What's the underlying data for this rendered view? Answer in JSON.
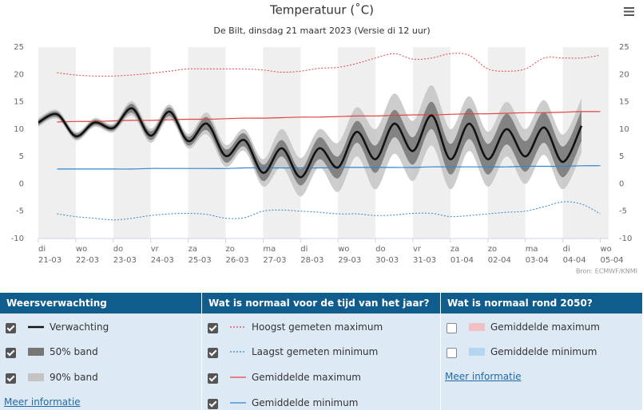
{
  "chart_data": {
    "type": "line",
    "title": "Temperatuur (˚C)",
    "subtitle": "De Bilt, dinsdag 21 maart 2023 (Versie di 12 uur)",
    "source": "Bron: ECMWF/KNMI",
    "weekdays": [
      "di",
      null,
      "wo",
      null,
      "do",
      null,
      "vr",
      null,
      "za",
      null,
      "zo",
      null,
      "ma",
      null,
      "di",
      null,
      "wo",
      null,
      "do",
      null,
      "vr",
      null,
      "za",
      null,
      "zo",
      null,
      "ma",
      null,
      "di",
      null,
      "wo"
    ],
    "categories": [
      "21-03",
      null,
      "22-03",
      null,
      "23-03",
      null,
      "24-03",
      null,
      "25-03",
      null,
      "26-03",
      null,
      "27-03",
      null,
      "28-03",
      null,
      "29-03",
      null,
      "30-03",
      null,
      "31-03",
      null,
      "01-04",
      null,
      "02-04",
      null,
      "03-04",
      null,
      "04-04",
      null,
      "05-04"
    ],
    "ylim": [
      -10,
      25
    ],
    "yticks": [
      -10,
      -5,
      0,
      5,
      10,
      15,
      20,
      25
    ],
    "bands": [
      {
        "name": "90% band",
        "color": "#c4c4c4",
        "checked": true,
        "low": [
          10.4,
          11.9,
          7.9,
          10.4,
          9.4,
          12.5,
          7.5,
          11.9,
          6.5,
          9.0,
          3.1,
          6.0,
          -0.5,
          3.0,
          -2.3,
          3.0,
          -1.5,
          5.0,
          -1.0,
          5.5,
          0.5,
          7.0,
          -1.0,
          6.0,
          -0.5,
          5.0,
          0.0,
          5.3,
          -1.0,
          5.6,
          null
        ],
        "high": [
          12.0,
          13.5,
          9.5,
          12.0,
          11.0,
          15.1,
          10.1,
          14.5,
          9.1,
          13.0,
          7.1,
          10.0,
          4.5,
          10.0,
          4.7,
          10.0,
          7.5,
          14.0,
          10.0,
          16.5,
          11.5,
          18.0,
          10.0,
          16.0,
          9.5,
          15.0,
          10.0,
          15.3,
          9.0,
          15.6,
          null
        ]
      },
      {
        "name": "50% band",
        "color": "#767676",
        "checked": true,
        "low": [
          10.7,
          12.2,
          8.2,
          10.7,
          9.7,
          13.0,
          8.0,
          12.4,
          7.0,
          9.8,
          3.9,
          6.8,
          0.5,
          5.0,
          -0.3,
          4.5,
          1.0,
          7.5,
          2.0,
          8.5,
          3.5,
          10.0,
          1.7,
          8.2,
          1.7,
          7.2,
          2.2,
          7.5,
          1.2,
          7.8,
          null
        ],
        "high": [
          11.7,
          13.2,
          9.2,
          11.7,
          10.7,
          14.6,
          9.6,
          14.0,
          8.6,
          12.2,
          6.3,
          9.2,
          3.5,
          8.0,
          2.7,
          8.5,
          5.0,
          11.5,
          7.0,
          13.5,
          8.5,
          15.0,
          7.3,
          13.8,
          7.3,
          12.8,
          7.8,
          13.1,
          6.8,
          13.4,
          null
        ]
      }
    ],
    "series": [
      {
        "name": "Verwachting",
        "color": "#111111",
        "style": "solid",
        "width": 2.6,
        "checked": true,
        "values": [
          11.2,
          12.7,
          8.7,
          11.2,
          10.2,
          13.8,
          8.8,
          13.2,
          7.8,
          11,
          5.1,
          8,
          2,
          6.5,
          1.2,
          6.5,
          3,
          9.5,
          4.5,
          11,
          6,
          12.5,
          4.5,
          11,
          4.5,
          10,
          5,
          10.3,
          4,
          10.6,
          null
        ]
      },
      {
        "name": "Hoogst gemeten maximum",
        "color": "#e0453f",
        "style": "dotted",
        "width": 1,
        "checked": true,
        "values": [
          null,
          20.3,
          19.9,
          19.7,
          19.7,
          19.9,
          20.2,
          20.6,
          21,
          21,
          21,
          21,
          20.8,
          20.4,
          20.6,
          21.1,
          21.3,
          22,
          23,
          23.8,
          22.8,
          23,
          23.8,
          23.5,
          21,
          20.6,
          21,
          23,
          23,
          23,
          23.5
        ]
      },
      {
        "name": "Laagst gemeten minimum",
        "color": "#2f86cf",
        "style": "dotted",
        "width": 1,
        "checked": true,
        "values": [
          null,
          -5.5,
          -6,
          -6.3,
          -6.6,
          -6.3,
          -5.8,
          -5.5,
          -5.4,
          -5.6,
          -6.3,
          -6.2,
          -5,
          -4.8,
          -5,
          -5.2,
          -5.5,
          -5.5,
          -5.8,
          -5.7,
          -5.4,
          -5.4,
          -6,
          -5.8,
          -5.5,
          -5.2,
          -5,
          -4.2,
          -3.3,
          -3.7,
          -5.5
        ]
      },
      {
        "name": "Gemiddelde maximum",
        "color": "#e0453f",
        "style": "solid",
        "width": 1.2,
        "checked": true,
        "values": [
          null,
          11.3,
          11.4,
          11.4,
          11.5,
          11.6,
          11.6,
          11.7,
          11.8,
          11.8,
          11.9,
          12,
          12,
          12.1,
          12.2,
          12.2,
          12.3,
          12.4,
          12.4,
          12.5,
          12.6,
          12.6,
          12.7,
          12.8,
          12.8,
          12.9,
          13,
          13,
          13.1,
          13.2,
          13.2
        ]
      },
      {
        "name": "Gemiddelde minimum",
        "color": "#2f86cf",
        "style": "solid",
        "width": 1.2,
        "checked": true,
        "values": [
          null,
          2.7,
          2.7,
          2.7,
          2.7,
          2.7,
          2.8,
          2.8,
          2.8,
          2.8,
          2.8,
          2.9,
          2.9,
          2.9,
          2.9,
          2.9,
          3,
          3,
          3,
          3,
          3,
          3.1,
          3.1,
          3.1,
          3.1,
          3.1,
          3.2,
          3.2,
          3.2,
          3.3,
          3.3
        ]
      }
    ]
  },
  "legend_panel": {
    "sections": [
      {
        "title": "Weersverwachting",
        "link": "Meer informatie"
      },
      {
        "title": "Wat is normaal voor de tijd van het jaar?"
      },
      {
        "title": "Wat is normaal rond 2050?",
        "link": "Meer informatie",
        "items": [
          {
            "name": "Gemiddelde maximum",
            "color": "#f2c0c4",
            "checked": false
          },
          {
            "name": "Gemiddelde minimum",
            "color": "#b5d6f1",
            "checked": false
          }
        ]
      }
    ]
  }
}
